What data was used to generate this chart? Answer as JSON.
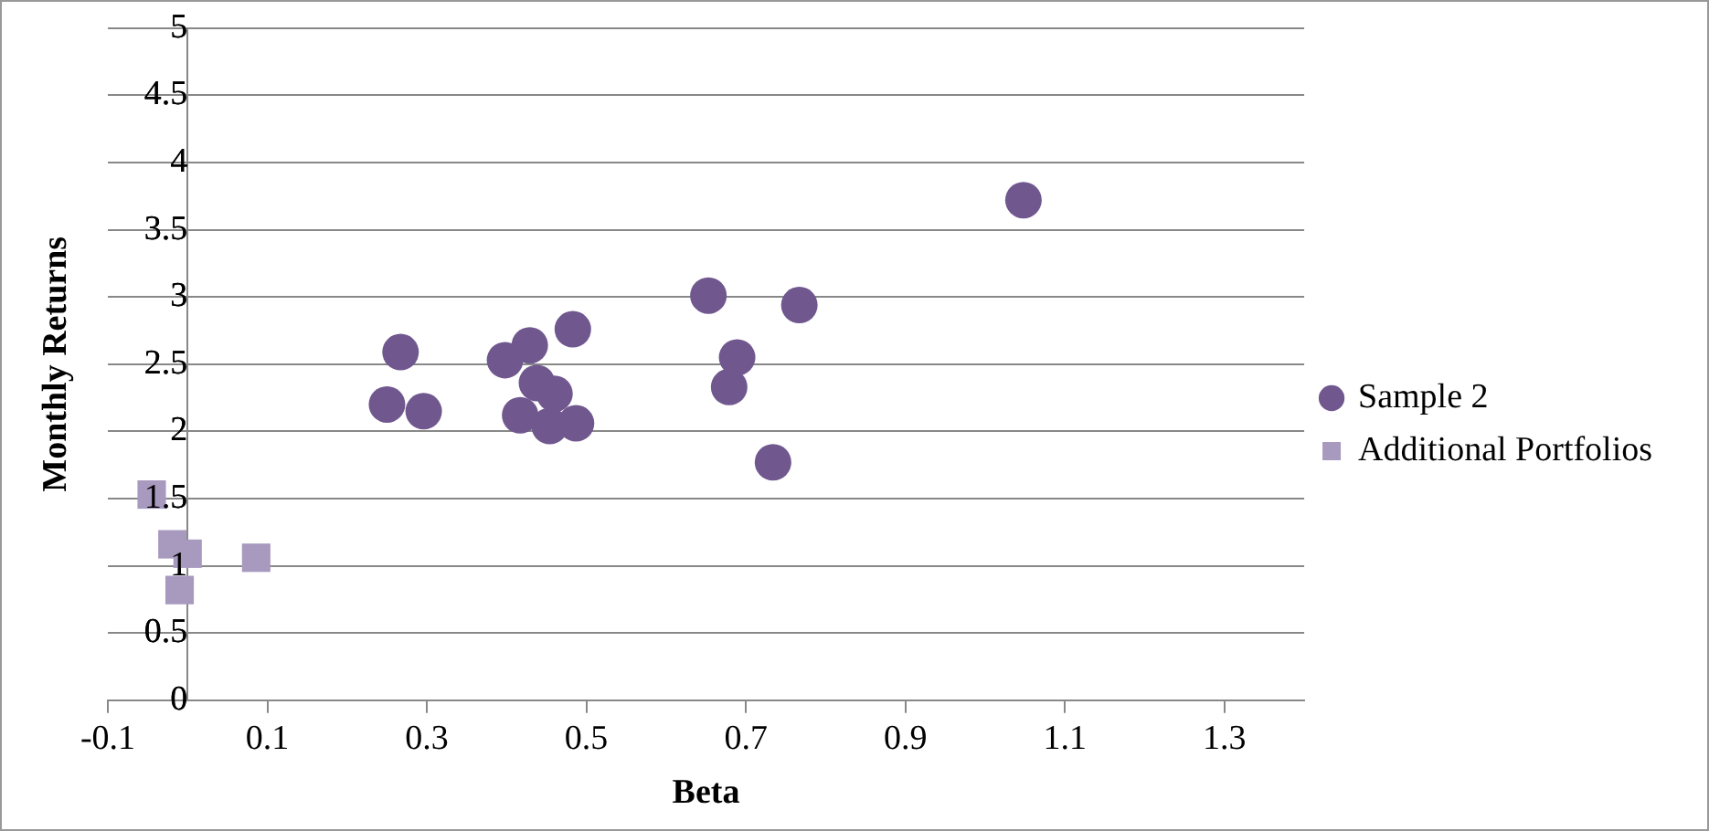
{
  "chart_data": {
    "type": "scatter",
    "xlabel": "Beta",
    "ylabel": "Monthly Returns",
    "xlim": [
      -0.1,
      1.4
    ],
    "xticks": [
      -0.1,
      0.1,
      0.3,
      0.5,
      0.7,
      0.9,
      1.1,
      1.3
    ],
    "ylim": [
      0,
      5
    ],
    "yticks": [
      0,
      0.5,
      1,
      1.5,
      2,
      2.5,
      3,
      3.5,
      4,
      4.5,
      5
    ],
    "grid": "y",
    "legend": "right",
    "series": [
      {
        "name": "Sample 2",
        "color": "#70588f",
        "marker": "circle",
        "x": [
          0.25,
          0.267,
          0.296,
          0.398,
          0.429,
          0.483,
          0.438,
          0.46,
          0.417,
          0.454,
          0.487,
          0.653,
          0.689,
          0.679,
          0.767,
          0.734,
          1.048
        ],
        "values": [
          2.2,
          2.59,
          2.15,
          2.53,
          2.64,
          2.76,
          2.36,
          2.28,
          2.12,
          2.04,
          2.06,
          3.01,
          2.55,
          2.33,
          2.94,
          1.77,
          3.72
        ]
      },
      {
        "name": "Additional Portfolios",
        "color": "#a899be",
        "marker": "square",
        "x": [
          -0.045,
          -0.019,
          0.0,
          -0.01,
          0.086
        ],
        "values": [
          1.53,
          1.16,
          1.09,
          0.82,
          1.06
        ]
      }
    ]
  }
}
